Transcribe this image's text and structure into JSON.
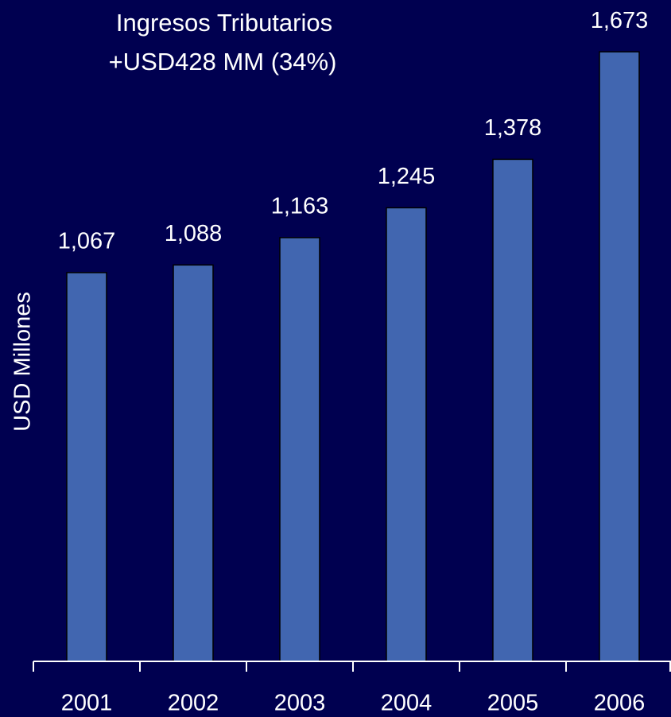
{
  "chart_data": {
    "type": "bar",
    "title": "Ingresos Tributarios",
    "subtitle": "+USD428 MM (34%)",
    "y_label": "USD Millones",
    "categories": [
      "2001",
      "2002",
      "2003",
      "2004",
      "2005",
      "2006"
    ],
    "values": [
      1067,
      1088,
      1163,
      1245,
      1378,
      1673
    ],
    "value_labels": [
      "1,067",
      "1,088",
      "1,163",
      "1,245",
      "1,378",
      "1,673"
    ],
    "color": "#4166b0",
    "ylim": [
      0,
      1800
    ]
  }
}
